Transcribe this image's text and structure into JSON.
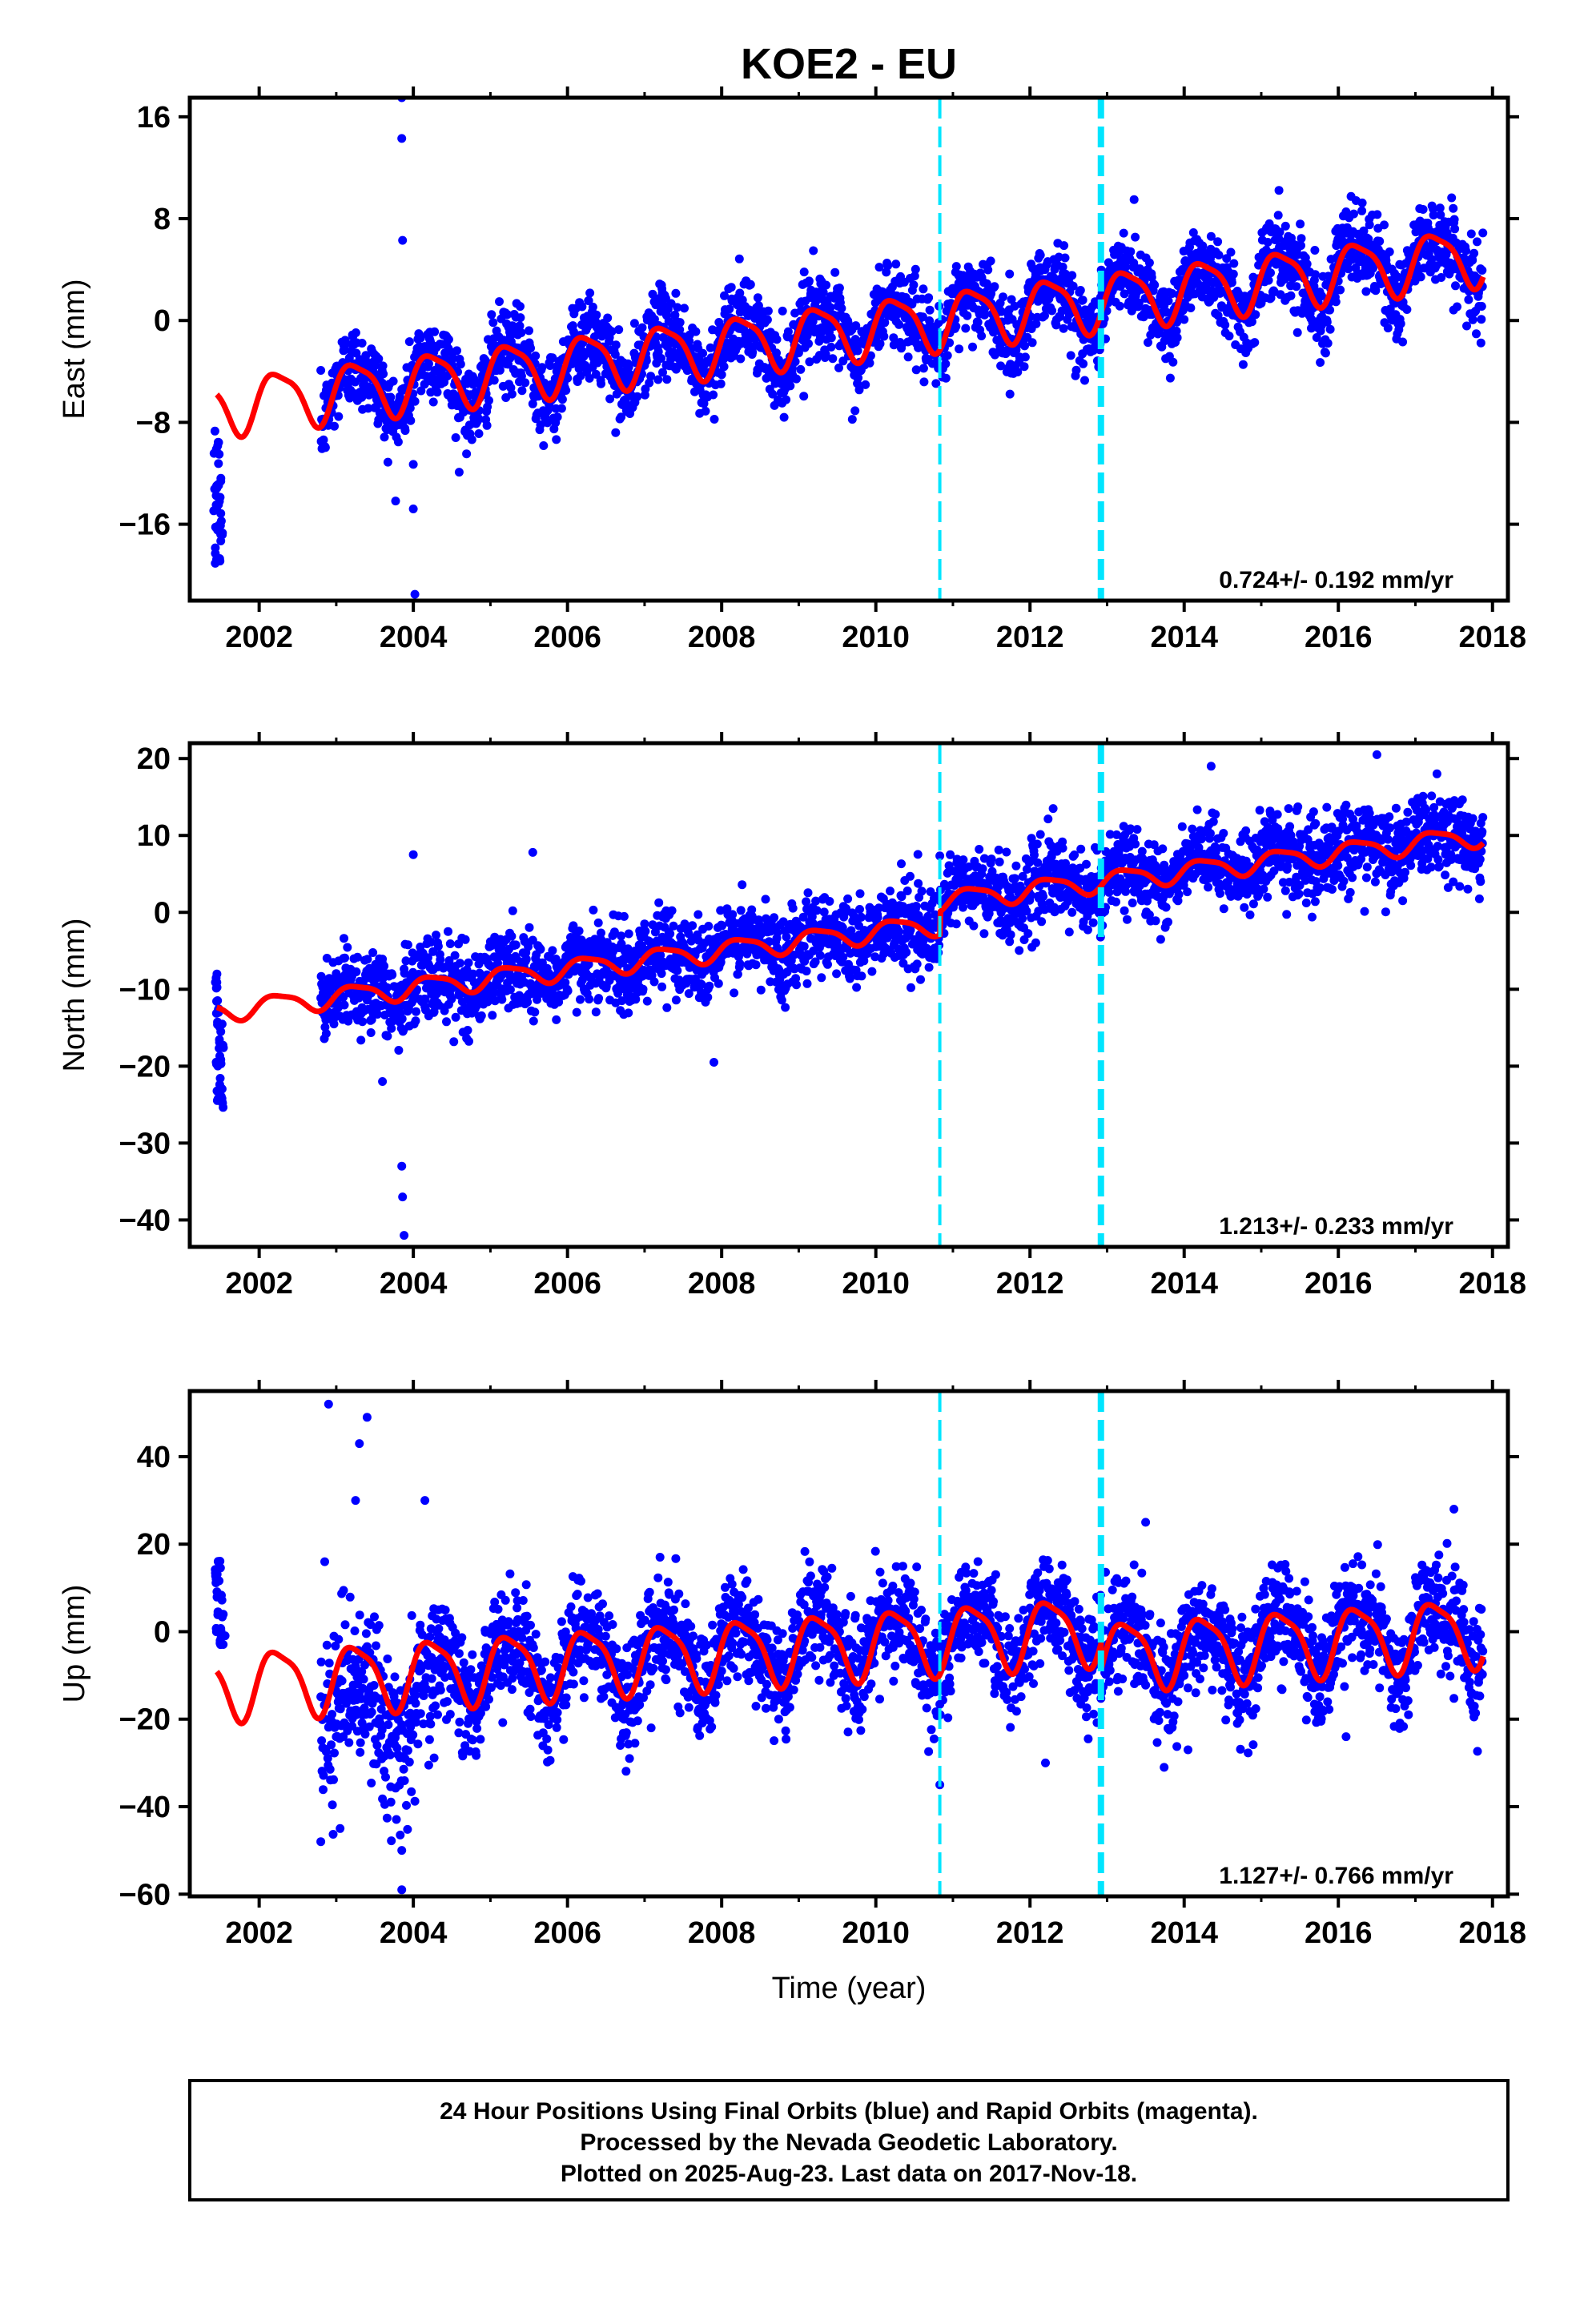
{
  "title": "KOE2 - EU",
  "caption": {
    "line1": "24 Hour Positions Using Final Orbits (blue) and Rapid Orbits (magenta).",
    "line2": "Processed by the Nevada Geodetic Laboratory.",
    "line3": "Plotted on 2025-Aug-23. Last data on 2017-Nov-18."
  },
  "colors": {
    "data": "#0000ff",
    "model": "#ff0000",
    "break": "#00e5ff",
    "frame": "#000000"
  },
  "chart_data": [
    {
      "type": "scatter",
      "component": "East",
      "ylabel": "East (mm)",
      "xlabel": "",
      "xlim": [
        2001.1,
        2018.2
      ],
      "ylim": [
        -22,
        17.5
      ],
      "yticks": [
        -16,
        -8,
        0,
        8,
        16
      ],
      "xticks": [
        2002,
        2004,
        2006,
        2008,
        2010,
        2012,
        2014,
        2016,
        2018
      ],
      "breaks": [
        {
          "x": 2010.83,
          "style": "thin"
        },
        {
          "x": 2012.92,
          "style": "thick"
        }
      ],
      "rate_label": "0.724+/- 0.192 mm/yr",
      "data_start": 2002.8,
      "data_end": 2017.88,
      "trend": {
        "t0": 2010,
        "offset": -0.5,
        "slope": 0.724
      },
      "annual_amplitude": 2.2,
      "scatter": 1.6,
      "model_breaks": [],
      "early_points": [
        {
          "x": 2001.45,
          "y": -14.5
        },
        {
          "x": 2001.48,
          "y": -13.6
        },
        {
          "x": 2001.5,
          "y": -15.8
        },
        {
          "x": 2001.52,
          "y": -16.7
        },
        {
          "x": 2001.47,
          "y": -12.8
        },
        {
          "x": 2001.46,
          "y": -18.5
        },
        {
          "x": 2001.44,
          "y": -9.8
        }
      ],
      "outliers": [
        {
          "x": 2003.85,
          "y": 17.5
        },
        {
          "x": 2003.85,
          "y": 14.3
        },
        {
          "x": 2003.86,
          "y": 6.3
        },
        {
          "x": 2004.0,
          "y": -11.3
        },
        {
          "x": 2004.0,
          "y": -14.8
        },
        {
          "x": 2004.02,
          "y": -21.5
        },
        {
          "x": 2003.55,
          "y": -7.8
        },
        {
          "x": 2004.55,
          "y": -9.2
        },
        {
          "x": 2013.35,
          "y": 9.5
        }
      ]
    },
    {
      "type": "scatter",
      "component": "North",
      "ylabel": "North (mm)",
      "xlabel": "",
      "xlim": [
        2001.1,
        2018.2
      ],
      "ylim": [
        -43.5,
        22
      ],
      "yticks": [
        -40,
        -30,
        -20,
        -10,
        0,
        10,
        20
      ],
      "xticks": [
        2002,
        2004,
        2006,
        2008,
        2010,
        2012,
        2014,
        2016,
        2018
      ],
      "breaks": [
        {
          "x": 2010.83,
          "style": "thin"
        },
        {
          "x": 2012.92,
          "style": "thick"
        }
      ],
      "rate_label": "1.213+/- 0.233 mm/yr",
      "data_start": 2002.8,
      "data_end": 2017.88,
      "trend": {
        "t0": 2010,
        "offset": -2.5,
        "slope": 1.213
      },
      "annual_amplitude": 1.3,
      "scatter": 2.6,
      "model_breaks": [
        {
          "x": 2010.83,
          "dy": 3.0
        }
      ],
      "early_points": [
        {
          "x": 2001.45,
          "y": -12.5
        },
        {
          "x": 2001.48,
          "y": -15.5
        },
        {
          "x": 2001.5,
          "y": -18.0
        },
        {
          "x": 2001.47,
          "y": -20.5
        },
        {
          "x": 2001.46,
          "y": -24.0
        },
        {
          "x": 2001.52,
          "y": -24.5
        },
        {
          "x": 2001.44,
          "y": -8.5
        }
      ],
      "outliers": [
        {
          "x": 2004.0,
          "y": 7.5
        },
        {
          "x": 2005.55,
          "y": 7.8
        },
        {
          "x": 2003.85,
          "y": -33.0
        },
        {
          "x": 2003.86,
          "y": -37.0
        },
        {
          "x": 2003.88,
          "y": -42.0
        },
        {
          "x": 2003.6,
          "y": -22.0
        },
        {
          "x": 2007.9,
          "y": -19.5
        },
        {
          "x": 2014.35,
          "y": 19.0
        },
        {
          "x": 2016.5,
          "y": 20.5
        },
        {
          "x": 2012.3,
          "y": 13.5
        }
      ]
    },
    {
      "type": "scatter",
      "component": "Up",
      "ylabel": "Up (mm)",
      "xlabel": "Time (year)",
      "xlim": [
        2001.1,
        2018.2
      ],
      "ylim": [
        -60.5,
        55
      ],
      "yticks": [
        -60,
        -40,
        -20,
        0,
        20,
        40
      ],
      "xticks": [
        2002,
        2004,
        2006,
        2008,
        2010,
        2012,
        2014,
        2016,
        2018
      ],
      "breaks": [
        {
          "x": 2010.83,
          "style": "thin"
        },
        {
          "x": 2012.92,
          "style": "thick"
        }
      ],
      "rate_label": "1.127+/- 0.766 mm/yr",
      "data_start": 2002.8,
      "data_end": 2017.88,
      "trend": {
        "t0": 2010,
        "offset": -2.5,
        "slope": 1.127
      },
      "annual_amplitude": 7.5,
      "scatter": 6.0,
      "model_breaks": [
        {
          "x": 2012.92,
          "dy": -6.0
        }
      ],
      "early_points": [
        {
          "x": 2001.45,
          "y": 12.0
        },
        {
          "x": 2001.48,
          "y": 8.0
        },
        {
          "x": 2001.5,
          "y": 4.0
        },
        {
          "x": 2001.47,
          "y": 0.0
        },
        {
          "x": 2001.52,
          "y": -3.0
        },
        {
          "x": 2001.46,
          "y": 15.0
        }
      ],
      "outliers": [
        {
          "x": 2002.9,
          "y": 52.0
        },
        {
          "x": 2003.4,
          "y": 49.0
        },
        {
          "x": 2003.3,
          "y": 43.0
        },
        {
          "x": 2003.25,
          "y": 30.0
        },
        {
          "x": 2004.15,
          "y": 30.0
        },
        {
          "x": 2003.85,
          "y": -50.0
        },
        {
          "x": 2003.85,
          "y": -59.0
        },
        {
          "x": 2002.85,
          "y": 16.0
        },
        {
          "x": 2002.8,
          "y": -48.0
        },
        {
          "x": 2003.05,
          "y": -45.0
        },
        {
          "x": 2010.83,
          "y": -35.0
        },
        {
          "x": 2012.2,
          "y": -30.0
        },
        {
          "x": 2016.1,
          "y": -24.0
        },
        {
          "x": 2014.05,
          "y": -27.0
        },
        {
          "x": 2017.5,
          "y": 28.0
        },
        {
          "x": 2013.5,
          "y": 25.0
        }
      ]
    }
  ]
}
